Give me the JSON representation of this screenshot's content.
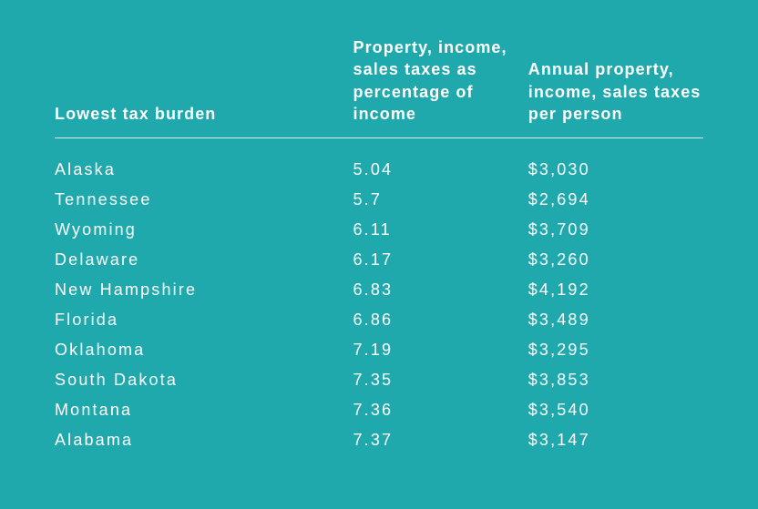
{
  "table": {
    "type": "table",
    "background_color": "#1fa9ad",
    "text_color": "#ffffff",
    "header_fontsize": 18,
    "header_fontweight": 700,
    "cell_fontsize": 18,
    "cell_fontweight": 400,
    "letter_spacing_em": 0.12,
    "divider_color": "#ffffff",
    "columns": [
      {
        "key": "state",
        "label": "Lowest tax burden",
        "width_pct": 46
      },
      {
        "key": "pct",
        "label": "Property, income, sales taxes as percentage of income",
        "width_pct": 27
      },
      {
        "key": "annual",
        "label": "Annual property, income, sales taxes per person",
        "width_pct": 27
      }
    ],
    "rows": [
      {
        "state": "Alaska",
        "pct": "5.04",
        "annual": "$3,030"
      },
      {
        "state": "Tennessee",
        "pct": "5.7",
        "annual": "$2,694"
      },
      {
        "state": "Wyoming",
        "pct": "6.11",
        "annual": "$3,709"
      },
      {
        "state": "Delaware",
        "pct": "6.17",
        "annual": "$3,260"
      },
      {
        "state": "New Hampshire",
        "pct": "6.83",
        "annual": "$4,192"
      },
      {
        "state": "Florida",
        "pct": "6.86",
        "annual": "$3,489"
      },
      {
        "state": "Oklahoma",
        "pct": "7.19",
        "annual": "$3,295"
      },
      {
        "state": "South Dakota",
        "pct": "7.35",
        "annual": "$3,853"
      },
      {
        "state": "Montana",
        "pct": "7.36",
        "annual": "$3,540"
      },
      {
        "state": "Alabama",
        "pct": "7.37",
        "annual": "$3,147"
      }
    ]
  }
}
